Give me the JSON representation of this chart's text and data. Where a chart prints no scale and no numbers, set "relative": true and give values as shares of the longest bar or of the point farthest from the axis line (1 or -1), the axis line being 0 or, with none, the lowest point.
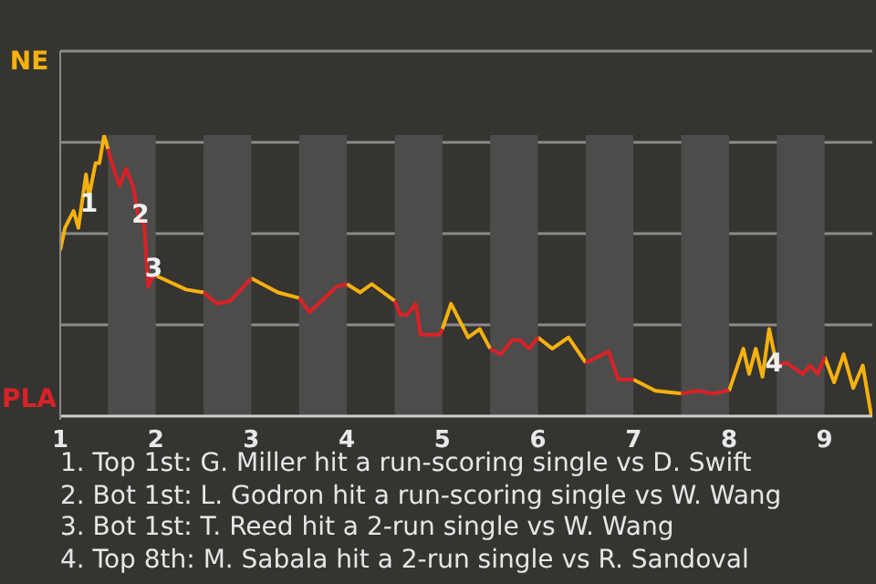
{
  "chart_data": {
    "type": "line",
    "relative": true,
    "x": [
      1,
      1.05,
      1.14,
      1.19,
      1.27,
      1.3,
      1.37,
      1.41,
      1.46,
      1.5,
      1.54,
      1.62,
      1.69,
      1.76,
      1.82,
      1.88,
      1.92,
      1.96,
      2,
      2.32,
      2.5,
      2.64,
      2.78,
      3,
      3.28,
      3.5,
      3.61,
      3.89,
      4,
      4.14,
      4.26,
      4.5,
      4.56,
      4.63,
      4.72,
      4.74,
      4.77,
      4.97,
      5,
      5.09,
      5.27,
      5.39,
      5.5,
      5.61,
      5.73,
      5.81,
      5.91,
      6,
      6.15,
      6.32,
      6.5,
      6.74,
      6.84,
      6.96,
      7,
      7.23,
      7.5,
      7.67,
      7.84,
      7.97,
      8,
      8.15,
      8.21,
      8.28,
      8.35,
      8.42,
      8.5,
      8.6,
      8.77,
      8.85,
      8.93,
      9,
      9.1,
      9.2,
      9.3,
      9.4,
      9.49
    ],
    "series": [
      {
        "name": "NE",
        "color": "#f5b10f",
        "values": [
          0.59,
          0.67,
          0.73,
          0.67,
          0.86,
          0.78,
          0.9,
          0.9,
          1,
          0.95,
          null,
          null,
          null,
          null,
          null,
          null,
          null,
          null,
          0.5,
          0.45,
          0.44,
          null,
          null,
          0.49,
          0.44,
          0.42,
          null,
          null,
          0.47,
          0.44,
          0.47,
          0.41,
          null,
          null,
          null,
          null,
          null,
          null,
          0.31,
          0.4,
          0.28,
          0.31,
          0.24,
          null,
          null,
          null,
          null,
          0.28,
          0.24,
          0.28,
          0.19,
          null,
          null,
          null,
          0.13,
          0.09,
          0.08,
          null,
          null,
          null,
          0.09,
          0.24,
          0.15,
          0.24,
          0.14,
          0.31,
          0.18,
          null,
          null,
          null,
          null,
          0.21,
          0.12,
          0.22,
          0.1,
          0.18,
          0
        ]
      },
      {
        "name": "PLA",
        "color": "#d92228",
        "values": [
          null,
          null,
          null,
          null,
          null,
          null,
          null,
          null,
          null,
          0.95,
          0.9,
          0.82,
          0.88,
          0.82,
          0.71,
          0.68,
          0.46,
          0.49,
          0.5,
          null,
          0.44,
          0.4,
          0.41,
          0.49,
          null,
          0.42,
          0.37,
          0.46,
          0.47,
          null,
          null,
          0.41,
          0.36,
          0.36,
          0.4,
          0.36,
          0.29,
          0.29,
          0.31,
          null,
          null,
          null,
          0.24,
          0.22,
          0.27,
          0.27,
          0.24,
          0.28,
          null,
          null,
          0.19,
          0.23,
          0.13,
          0.13,
          0.13,
          null,
          0.08,
          0.09,
          0.08,
          0.09,
          0.09,
          null,
          null,
          null,
          null,
          null,
          0.18,
          0.19,
          0.15,
          0.18,
          0.15,
          0.21,
          null,
          null,
          null,
          null,
          null
        ]
      }
    ],
    "xlim": [
      1,
      9.5
    ],
    "xticks": [
      1,
      2,
      3,
      4,
      5,
      6,
      7,
      8,
      9
    ],
    "grid": "y",
    "legend": "left",
    "line_style": "solid",
    "bands": [
      {
        "axis": "x",
        "from": 1.5,
        "to": 2,
        "color": "#4d4c4b"
      },
      {
        "axis": "x",
        "from": 2.5,
        "to": 3,
        "color": "#4d4c4b"
      },
      {
        "axis": "x",
        "from": 3.5,
        "to": 4,
        "color": "#4d4c4b"
      },
      {
        "axis": "x",
        "from": 4.5,
        "to": 5,
        "color": "#4d4c4b"
      },
      {
        "axis": "x",
        "from": 5.5,
        "to": 6,
        "color": "#4d4c4b"
      },
      {
        "axis": "x",
        "from": 6.5,
        "to": 7,
        "color": "#4d4c4b"
      },
      {
        "axis": "x",
        "from": 7.5,
        "to": 8,
        "color": "#4d4c4b"
      },
      {
        "axis": "x",
        "from": 8.5,
        "to": 9,
        "color": "#4d4c4b"
      }
    ],
    "annotations": [
      {
        "text": "1",
        "x": 1.3,
        "y": 0.76
      },
      {
        "text": "2",
        "x": 1.84,
        "y": 0.72
      },
      {
        "text": "3",
        "x": 1.98,
        "y": 0.53
      },
      {
        "text": "4",
        "x": 8.47,
        "y": 0.19
      },
      "1. Top 1st: G. Miller hit a run-scoring single vs D. Swift",
      "2. Bot 1st: L. Godron hit a run-scoring single vs W. Wang",
      "3. Bot 1st: T. Reed hit a 2-run single vs W. Wang",
      "4. Top 8th: M. Sabala hit a 2-run single vs R. Sandoval"
    ]
  }
}
